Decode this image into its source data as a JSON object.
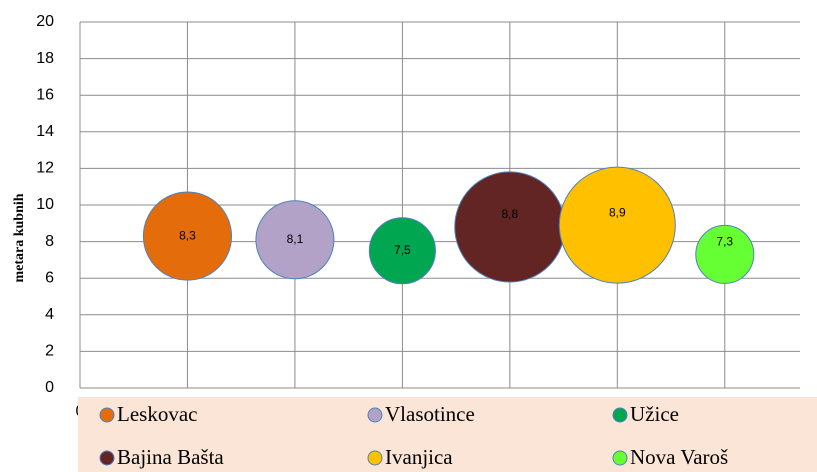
{
  "chart_data": {
    "type": "bubble",
    "y_label": "metara kubnih",
    "xlim": [
      0,
      6.7
    ],
    "xticks": [
      0,
      1,
      2,
      3,
      4,
      5,
      6
    ],
    "ylim": [
      0,
      20
    ],
    "yticks": [
      0,
      2,
      4,
      6,
      8,
      10,
      12,
      14,
      16,
      18,
      20
    ],
    "grid": true,
    "legend": "bottom",
    "series": [
      {
        "name": "Leskovac",
        "color": "#e46c0a",
        "x": [
          1
        ],
        "values": [
          8.3
        ],
        "sizes": [
          19.4
        ],
        "value_labels": [
          "8,3"
        ]
      },
      {
        "name": "Vlasotince",
        "color": "#b3a2c7",
        "x": [
          2
        ],
        "values": [
          8.1
        ],
        "sizes": [
          15.2
        ],
        "value_labels": [
          "8,1"
        ]
      },
      {
        "name": "Užice",
        "color": "#00a650",
        "x": [
          3
        ],
        "values": [
          7.5
        ],
        "sizes": [
          10.9
        ],
        "value_labels": [
          "7,5"
        ]
      },
      {
        "name": "Bajina Bašta",
        "color": "#632523",
        "x": [
          4
        ],
        "values": [
          8.8
        ],
        "sizes": [
          30.3
        ],
        "value_labels": [
          "8,8"
        ]
      },
      {
        "name": "Ivanjica",
        "color": "#ffc000",
        "x": [
          5
        ],
        "values": [
          8.9
        ],
        "sizes": [
          33.6
        ],
        "value_labels": [
          "8,9"
        ]
      },
      {
        "name": "Nova Varoš",
        "color": "#66ff33",
        "x": [
          6
        ],
        "values": [
          7.3
        ],
        "sizes": [
          8.4
        ],
        "value_labels": [
          "7,3"
        ]
      }
    ]
  }
}
